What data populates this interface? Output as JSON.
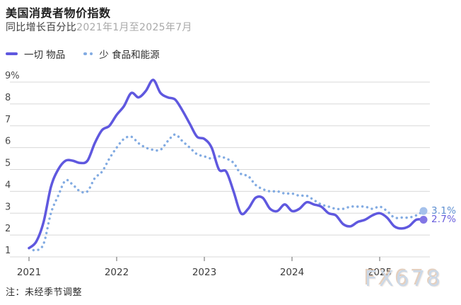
{
  "header": {
    "title": "美国消费者物价指数",
    "subtitle_label": "同比增长百分比",
    "subtitle_range": "2021年1月至2025年7月"
  },
  "chart_data": {
    "type": "line",
    "x_unit": "month",
    "x_range_text": "2021年1月至2025年7月",
    "x_tick_labels": [
      "2021",
      "2022",
      "2023",
      "2024",
      "2025"
    ],
    "x_tick_month_index": [
      0,
      12,
      24,
      36,
      48
    ],
    "y_ticks": [
      1,
      2,
      3,
      4,
      5,
      6,
      7,
      8,
      9
    ],
    "y_tick_labels": [
      "1",
      "2",
      "3",
      "4",
      "5",
      "6",
      "7",
      "8",
      "9%"
    ],
    "ylim": [
      1,
      9
    ],
    "grid": "horizontal",
    "legend_position": "top-left",
    "series": [
      {
        "name": "一切 物品",
        "style": "solid",
        "color": "#5f58df",
        "end_dot_color": "#8276e5",
        "end_label": "2.7%",
        "end_label_color": "#6a5fdd",
        "values": [
          1.4,
          1.7,
          2.6,
          4.2,
          5.0,
          5.4,
          5.4,
          5.3,
          5.4,
          6.2,
          6.8,
          7.0,
          7.5,
          7.9,
          8.5,
          8.3,
          8.6,
          9.1,
          8.5,
          8.3,
          8.2,
          7.7,
          7.1,
          6.5,
          6.4,
          6.0,
          5.0,
          4.9,
          4.0,
          3.0,
          3.2,
          3.7,
          3.7,
          3.2,
          3.1,
          3.4,
          3.1,
          3.2,
          3.5,
          3.4,
          3.3,
          3.0,
          2.9,
          2.5,
          2.4,
          2.6,
          2.7,
          2.9,
          3.0,
          2.8,
          2.4,
          2.3,
          2.4,
          2.7,
          2.7
        ]
      },
      {
        "name": "少 食品和能源",
        "style": "dotted",
        "color": "#82abe2",
        "end_dot_color": "#a5c1eb",
        "end_label": "3.1%",
        "end_label_color": "#5e8fd0",
        "values": [
          1.4,
          1.3,
          1.6,
          3.0,
          3.8,
          4.5,
          4.3,
          4.0,
          4.0,
          4.6,
          4.9,
          5.5,
          6.0,
          6.4,
          6.5,
          6.2,
          6.0,
          5.9,
          5.9,
          6.3,
          6.6,
          6.3,
          6.0,
          5.7,
          5.6,
          5.5,
          5.6,
          5.5,
          5.3,
          4.8,
          4.7,
          4.3,
          4.1,
          4.0,
          4.0,
          3.9,
          3.9,
          3.8,
          3.8,
          3.6,
          3.4,
          3.3,
          3.2,
          3.2,
          3.3,
          3.3,
          3.3,
          3.2,
          3.3,
          3.1,
          2.8,
          2.8,
          2.8,
          2.9,
          3.1
        ]
      }
    ],
    "colors": {
      "gridline": "#d8d8d8",
      "axis_tick": "#8a8a8a",
      "y_tick_label": "#4a4a4a",
      "x_tick_label": "#3c3c3c"
    }
  },
  "footer": {
    "note": "注：未经季节调整"
  },
  "watermark": "FX678"
}
